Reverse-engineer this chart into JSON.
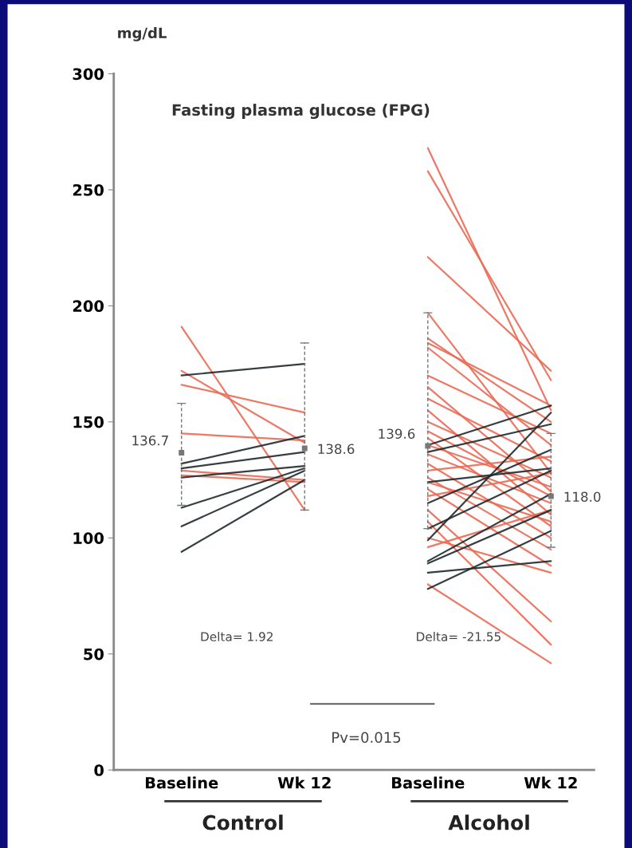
{
  "chart_data": {
    "type": "line",
    "title": "Fasting plasma glucose (FPG)",
    "ylabel": "mg/dL",
    "categories": [
      "Baseline",
      "Wk 12",
      "Baseline",
      "Wk 12"
    ],
    "ylim": [
      0,
      300
    ],
    "yticks": [
      0,
      50,
      100,
      150,
      200,
      250,
      300
    ],
    "grid": false,
    "marker": "none",
    "line_style": "solid",
    "annotations": [
      "Delta= 1.92",
      "Delta= -21.55",
      "Pv=0.015",
      "Control",
      "Alcohol"
    ],
    "series": [
      {
        "color": "#ea6a55",
        "values": [
          191,
          112,
          null,
          null
        ]
      },
      {
        "color": "#ea6a55",
        "values": [
          172,
          141,
          null,
          null
        ]
      },
      {
        "color": "#ea6a55",
        "values": [
          166,
          154,
          null,
          null
        ]
      },
      {
        "color": "#ea6a55",
        "values": [
          145,
          142,
          null,
          null
        ]
      },
      {
        "color": "#ea6a55",
        "values": [
          129,
          125,
          null,
          null
        ]
      },
      {
        "color": "#ea6a55",
        "values": [
          127,
          124,
          null,
          null
        ]
      },
      {
        "color": "#1f2a2c",
        "values": [
          170,
          175,
          null,
          null
        ]
      },
      {
        "color": "#1f2a2c",
        "values": [
          132,
          144,
          null,
          null
        ]
      },
      {
        "color": "#1f2a2c",
        "values": [
          130,
          137,
          null,
          null
        ]
      },
      {
        "color": "#1f2a2c",
        "values": [
          126,
          131,
          null,
          null
        ]
      },
      {
        "color": "#1f2a2c",
        "values": [
          113,
          130,
          null,
          null
        ]
      },
      {
        "color": "#1f2a2c",
        "values": [
          105,
          129,
          null,
          null
        ]
      },
      {
        "color": "#1f2a2c",
        "values": [
          94,
          125,
          null,
          null
        ]
      },
      {
        "color": "#ea6a55",
        "values": [
          null,
          null,
          268,
          155
        ]
      },
      {
        "color": "#ea6a55",
        "values": [
          null,
          null,
          258,
          168
        ]
      },
      {
        "color": "#ea6a55",
        "values": [
          null,
          null,
          221,
          172
        ]
      },
      {
        "color": "#ea6a55",
        "values": [
          null,
          null,
          197,
          128
        ]
      },
      {
        "color": "#ea6a55",
        "values": [
          null,
          null,
          186,
          150
        ]
      },
      {
        "color": "#ea6a55",
        "values": [
          null,
          null,
          184,
          157
        ]
      },
      {
        "color": "#ea6a55",
        "values": [
          null,
          null,
          182,
          140
        ]
      },
      {
        "color": "#ea6a55",
        "values": [
          null,
          null,
          170,
          145
        ]
      },
      {
        "color": "#ea6a55",
        "values": [
          null,
          null,
          165,
          120
        ]
      },
      {
        "color": "#ea6a55",
        "values": [
          null,
          null,
          160,
          133
        ]
      },
      {
        "color": "#ea6a55",
        "values": [
          null,
          null,
          155,
          110
        ]
      },
      {
        "color": "#ea6a55",
        "values": [
          null,
          null,
          150,
          126
        ]
      },
      {
        "color": "#ea6a55",
        "values": [
          null,
          null,
          146,
          118
        ]
      },
      {
        "color": "#ea6a55",
        "values": [
          null,
          null,
          143,
          105
        ]
      },
      {
        "color": "#ea6a55",
        "values": [
          null,
          null,
          140,
          122
        ]
      },
      {
        "color": "#ea6a55",
        "values": [
          null,
          null,
          136,
          115
        ]
      },
      {
        "color": "#ea6a55",
        "values": [
          null,
          null,
          132,
          100
        ]
      },
      {
        "color": "#ea6a55",
        "values": [
          null,
          null,
          129,
          135
        ]
      },
      {
        "color": "#ea6a55",
        "values": [
          null,
          null,
          126,
          95
        ]
      },
      {
        "color": "#ea6a55",
        "values": [
          null,
          null,
          124,
          107
        ]
      },
      {
        "color": "#ea6a55",
        "values": [
          null,
          null,
          121,
          88
        ]
      },
      {
        "color": "#ea6a55",
        "values": [
          null,
          null,
          118,
          128
        ]
      },
      {
        "color": "#ea6a55",
        "values": [
          null,
          null,
          112,
          64
        ]
      },
      {
        "color": "#ea6a55",
        "values": [
          null,
          null,
          107,
          54
        ]
      },
      {
        "color": "#ea6a55",
        "values": [
          null,
          null,
          100,
          85
        ]
      },
      {
        "color": "#ea6a55",
        "values": [
          null,
          null,
          96,
          112
        ]
      },
      {
        "color": "#ea6a55",
        "values": [
          null,
          null,
          80,
          46
        ]
      },
      {
        "color": "#1f2a2c",
        "values": [
          null,
          null,
          140,
          157
        ]
      },
      {
        "color": "#1f2a2c",
        "values": [
          null,
          null,
          137,
          149
        ]
      },
      {
        "color": "#1f2a2c",
        "values": [
          null,
          null,
          99,
          154
        ]
      },
      {
        "color": "#1f2a2c",
        "values": [
          null,
          null,
          124,
          130
        ]
      },
      {
        "color": "#1f2a2c",
        "values": [
          null,
          null,
          115,
          138
        ]
      },
      {
        "color": "#1f2a2c",
        "values": [
          null,
          null,
          104,
          129
        ]
      },
      {
        "color": "#1f2a2c",
        "values": [
          null,
          null,
          90,
          119
        ]
      },
      {
        "color": "#1f2a2c",
        "values": [
          null,
          null,
          89,
          112
        ]
      },
      {
        "color": "#1f2a2c",
        "values": [
          null,
          null,
          85,
          90
        ]
      },
      {
        "color": "#1f2a2c",
        "values": [
          null,
          null,
          78,
          103
        ]
      },
      {
        "type": "scatter",
        "color": "#777777",
        "line_style": "dashed",
        "marker": "square",
        "values": [
          136.7,
          138.6,
          139.6,
          118.0
        ],
        "errors": [
          [
            114,
            158
          ],
          [
            112,
            184
          ],
          [
            104,
            197
          ],
          [
            96,
            145
          ]
        ],
        "value_labels": [
          "136.7",
          "138.6",
          "139.6",
          "118.0"
        ]
      }
    ]
  }
}
